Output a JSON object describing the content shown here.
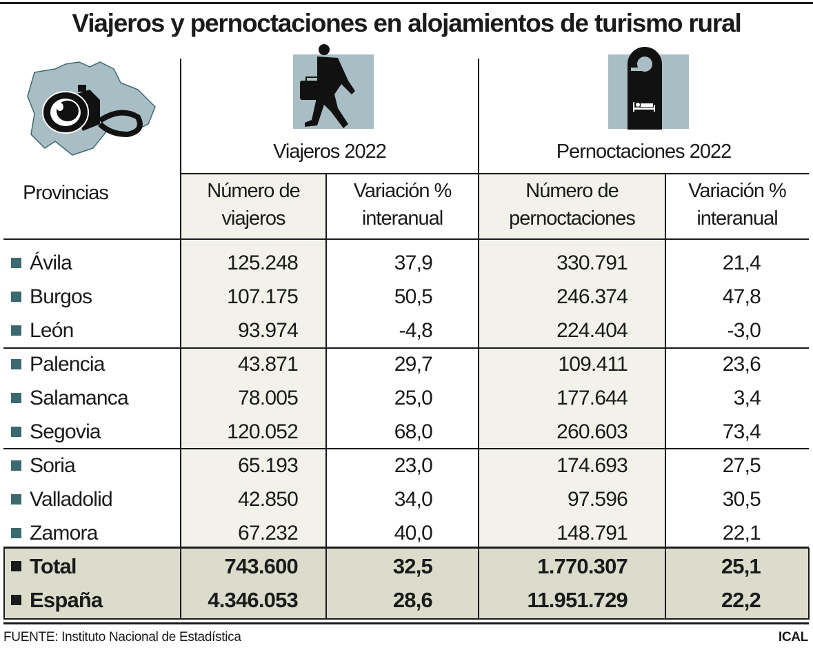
{
  "title": "Viajeros y pernoctaciones en alojamientos de turismo rural",
  "icons": {
    "map": "castilla-leon-map-with-camera-icon",
    "traveler": "walking-traveler-icon",
    "hotel": "door-hanger-bed-icon",
    "icon_bg": "#a9bec4"
  },
  "colors": {
    "bullet": "#3b6a6e",
    "shade": "#f2f1ea",
    "total_band": "#dcdccc"
  },
  "header": {
    "provinces": "Provincias",
    "group1": "Viajeros 2022",
    "group2": "Pernoctaciones 2022",
    "col1": [
      "Número de",
      "viajeros"
    ],
    "col2": [
      "Variación %",
      "interanual"
    ],
    "col3": [
      "Número de",
      "pernoctaciones"
    ],
    "col4": [
      "Variación %",
      "interanual"
    ]
  },
  "rows": [
    {
      "name": "Ávila",
      "viajeros": "125.248",
      "var_v": "37,9",
      "pernoct": "330.791",
      "var_p": "21,4"
    },
    {
      "name": "Burgos",
      "viajeros": "107.175",
      "var_v": "50,5",
      "pernoct": "246.374",
      "var_p": "47,8"
    },
    {
      "name": "León",
      "viajeros": "93.974",
      "var_v": "-4,8",
      "pernoct": "224.404",
      "var_p": "-3,0"
    },
    {
      "name": "Palencia",
      "viajeros": "43.871",
      "var_v": "29,7",
      "pernoct": "109.411",
      "var_p": "23,6"
    },
    {
      "name": "Salamanca",
      "viajeros": "78.005",
      "var_v": "25,0",
      "pernoct": "177.644",
      "var_p": "3,4"
    },
    {
      "name": "Segovia",
      "viajeros": "120.052",
      "var_v": "68,0",
      "pernoct": "260.603",
      "var_p": "73,4"
    },
    {
      "name": "Soria",
      "viajeros": "65.193",
      "var_v": "23,0",
      "pernoct": "174.693",
      "var_p": "27,5"
    },
    {
      "name": "Valladolid",
      "viajeros": "42.850",
      "var_v": "34,0",
      "pernoct": "97.596",
      "var_p": "30,5"
    },
    {
      "name": "Zamora",
      "viajeros": "67.232",
      "var_v": "40,0",
      "pernoct": "148.791",
      "var_p": "22,1"
    }
  ],
  "totals": [
    {
      "name": "Total",
      "viajeros": "743.600",
      "var_v": "32,5",
      "pernoct": "1.770.307",
      "var_p": "25,1"
    },
    {
      "name": "España",
      "viajeros": "4.346.053",
      "var_v": "28,6",
      "pernoct": "11.951.729",
      "var_p": "22,2"
    }
  ],
  "footer": {
    "source": "FUENTE: Instituto Nacional de Estadística",
    "brand": "ICAL"
  }
}
